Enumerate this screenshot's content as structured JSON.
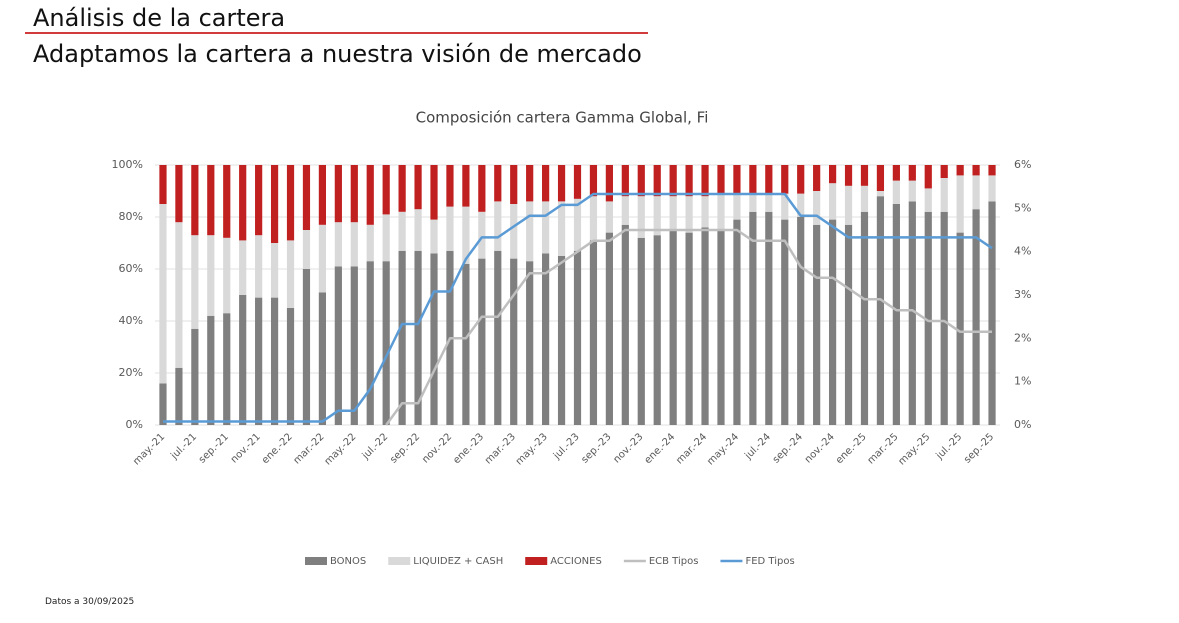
{
  "header": {
    "title": "Análisis de la cartera",
    "subtitle": "Adaptamos la cartera a nuestra visión de mercado"
  },
  "footnote": "Datos a 30/09/2025",
  "chart_data": {
    "type": "bar",
    "stacked": true,
    "title": "Composición cartera Gamma Global, Fi",
    "categories": [
      "may.-21",
      null,
      "jul.-21",
      null,
      "sep.-21",
      null,
      "nov.-21",
      null,
      "ene.-22",
      null,
      "mar.-22",
      null,
      "may.-22",
      null,
      "jul.-22",
      null,
      "sep.-22",
      null,
      "nov.-22",
      null,
      "ene.-23",
      null,
      "mar.-23",
      null,
      "may.-23",
      null,
      "jul.-23",
      null,
      "sep.-23",
      null,
      "nov.-23",
      null,
      "ene.-24",
      null,
      "mar.-24",
      null,
      "may.-24",
      null,
      "jul.-24",
      null,
      "sep.-24",
      null,
      "nov.-24",
      null,
      "ene.-25",
      null,
      "mar.-25",
      null,
      "may.-25",
      null,
      "jul.-25",
      null,
      "sep.-25"
    ],
    "series": [
      {
        "name": "BONOS",
        "type": "bar",
        "color": "#7f7f7f",
        "values": [
          16,
          22,
          37,
          42,
          43,
          50,
          49,
          49,
          45,
          60,
          51,
          61,
          61,
          63,
          63,
          67,
          67,
          66,
          67,
          62,
          64,
          67,
          64,
          63,
          66,
          65,
          67,
          71,
          74,
          77,
          72,
          73,
          75,
          74,
          76,
          75,
          79,
          82,
          82,
          79,
          80,
          77,
          79,
          77,
          82,
          88,
          85,
          86,
          82,
          82,
          74,
          83,
          86
        ]
      },
      {
        "name": "LIQUIDEZ + CASH",
        "type": "bar",
        "color": "#d9d9d9",
        "values": [
          69,
          56,
          36,
          31,
          29,
          21,
          24,
          21,
          26,
          15,
          26,
          17,
          17,
          14,
          18,
          15,
          16,
          13,
          17,
          22,
          18,
          19,
          21,
          23,
          20,
          21,
          20,
          17,
          12,
          11,
          16,
          15,
          13,
          14,
          12,
          14,
          10,
          7,
          7,
          10,
          9,
          13,
          14,
          15,
          10,
          2,
          9,
          8,
          9,
          13,
          22,
          13,
          10
        ]
      },
      {
        "name": "ACCIONES",
        "type": "bar",
        "color": "#c0201f",
        "values": [
          15,
          22,
          27,
          27,
          28,
          29,
          27,
          30,
          29,
          25,
          23,
          22,
          22,
          23,
          19,
          18,
          17,
          21,
          16,
          16,
          18,
          14,
          15,
          14,
          14,
          14,
          13,
          12,
          14,
          12,
          12,
          12,
          12,
          12,
          12,
          11,
          11,
          11,
          11,
          11,
          11,
          10,
          7,
          8,
          8,
          10,
          6,
          6,
          9,
          5,
          4,
          4,
          4
        ]
      },
      {
        "name": "ECB Tipos",
        "type": "line",
        "axis": "y2",
        "color": "#bfbfbf",
        "values": [
          null,
          null,
          null,
          null,
          null,
          null,
          null,
          null,
          null,
          null,
          null,
          null,
          null,
          null,
          0,
          0.5,
          0.5,
          1.25,
          2,
          2,
          2.5,
          2.5,
          3,
          3.5,
          3.5,
          3.75,
          4,
          4.25,
          4.25,
          4.5,
          4.5,
          4.5,
          4.5,
          4.5,
          4.5,
          4.5,
          4.5,
          4.25,
          4.25,
          4.25,
          3.65,
          3.4,
          3.4,
          3.15,
          2.9,
          2.9,
          2.65,
          2.65,
          2.4,
          2.4,
          2.15,
          2.15,
          2.15
        ]
      },
      {
        "name": "FED Tipos",
        "type": "line",
        "axis": "y2",
        "color": "#5b9bd5",
        "values": [
          0.08,
          0.08,
          0.08,
          0.08,
          0.08,
          0.08,
          0.08,
          0.08,
          0.08,
          0.08,
          0.08,
          0.33,
          0.33,
          0.83,
          1.58,
          2.33,
          2.33,
          3.08,
          3.08,
          3.83,
          4.33,
          4.33,
          4.58,
          4.83,
          4.83,
          5.08,
          5.08,
          5.33,
          5.33,
          5.33,
          5.33,
          5.33,
          5.33,
          5.33,
          5.33,
          5.33,
          5.33,
          5.33,
          5.33,
          5.33,
          4.83,
          4.83,
          4.58,
          4.33,
          4.33,
          4.33,
          4.33,
          4.33,
          4.33,
          4.33,
          4.33,
          4.33,
          4.08
        ]
      }
    ],
    "ylim": [
      0,
      100
    ],
    "yticks": [
      {
        "value": 0,
        "label": "0%"
      },
      {
        "value": 20,
        "label": "20%"
      },
      {
        "value": 40,
        "label": "40%"
      },
      {
        "value": 60,
        "label": "60%"
      },
      {
        "value": 80,
        "label": "80%"
      },
      {
        "value": 100,
        "label": "100%"
      }
    ],
    "y2lim": [
      0,
      6
    ],
    "y2ticks": [
      {
        "value": 0,
        "label": "0%"
      },
      {
        "value": 1,
        "label": "1%"
      },
      {
        "value": 2,
        "label": "2%"
      },
      {
        "value": 3,
        "label": "3%"
      },
      {
        "value": 4,
        "label": "4%"
      },
      {
        "value": 5,
        "label": "5%"
      },
      {
        "value": 6,
        "label": "6%"
      }
    ],
    "grid": true,
    "legend": "bottom"
  }
}
